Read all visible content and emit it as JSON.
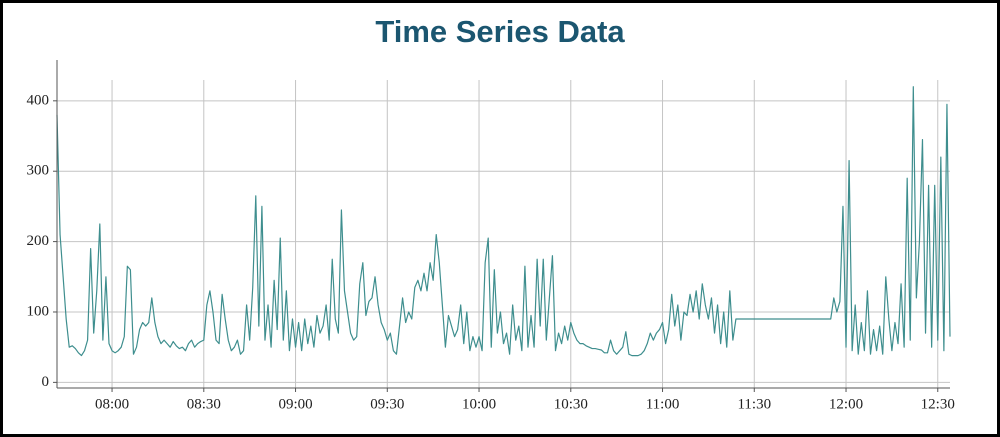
{
  "chart_data": {
    "type": "line",
    "title": "Time Series Data",
    "x": [
      "07:42",
      "07:43",
      "07:44",
      "07:45",
      "07:46",
      "07:47",
      "07:48",
      "07:49",
      "07:50",
      "07:51",
      "07:52",
      "07:53",
      "07:54",
      "07:55",
      "07:56",
      "07:57",
      "07:58",
      "07:59",
      "08:00",
      "08:01",
      "08:02",
      "08:03",
      "08:04",
      "08:05",
      "08:06",
      "08:07",
      "08:08",
      "08:09",
      "08:10",
      "08:11",
      "08:12",
      "08:13",
      "08:14",
      "08:15",
      "08:16",
      "08:17",
      "08:18",
      "08:19",
      "08:20",
      "08:21",
      "08:22",
      "08:23",
      "08:24",
      "08:25",
      "08:26",
      "08:27",
      "08:28",
      "08:29",
      "08:30",
      "08:31",
      "08:32",
      "08:33",
      "08:34",
      "08:35",
      "08:36",
      "08:37",
      "08:38",
      "08:39",
      "08:40",
      "08:41",
      "08:42",
      "08:43",
      "08:44",
      "08:45",
      "08:46",
      "08:47",
      "08:48",
      "08:49",
      "08:50",
      "08:51",
      "08:52",
      "08:53",
      "08:54",
      "08:55",
      "08:56",
      "08:57",
      "08:58",
      "08:59",
      "09:00",
      "09:01",
      "09:02",
      "09:03",
      "09:04",
      "09:05",
      "09:06",
      "09:07",
      "09:08",
      "09:09",
      "09:10",
      "09:11",
      "09:12",
      "09:13",
      "09:14",
      "09:15",
      "09:16",
      "09:17",
      "09:18",
      "09:19",
      "09:20",
      "09:21",
      "09:22",
      "09:23",
      "09:24",
      "09:25",
      "09:26",
      "09:27",
      "09:28",
      "09:29",
      "09:30",
      "09:31",
      "09:32",
      "09:33",
      "09:34",
      "09:35",
      "09:36",
      "09:37",
      "09:38",
      "09:39",
      "09:40",
      "09:41",
      "09:42",
      "09:43",
      "09:44",
      "09:45",
      "09:46",
      "09:47",
      "09:48",
      "09:49",
      "09:50",
      "09:51",
      "09:52",
      "09:53",
      "09:54",
      "09:55",
      "09:56",
      "09:57",
      "09:58",
      "09:59",
      "10:00",
      "10:01",
      "10:02",
      "10:03",
      "10:04",
      "10:05",
      "10:06",
      "10:07",
      "10:08",
      "10:09",
      "10:10",
      "10:11",
      "10:12",
      "10:13",
      "10:14",
      "10:15",
      "10:16",
      "10:17",
      "10:18",
      "10:19",
      "10:20",
      "10:21",
      "10:22",
      "10:23",
      "10:24",
      "10:25",
      "10:26",
      "10:27",
      "10:28",
      "10:29",
      "10:30",
      "10:31",
      "10:32",
      "10:33",
      "10:34",
      "10:35",
      "10:36",
      "10:37",
      "10:38",
      "10:39",
      "10:40",
      "10:41",
      "10:42",
      "10:43",
      "10:44",
      "10:45",
      "10:46",
      "10:47",
      "10:48",
      "10:49",
      "10:50",
      "10:51",
      "10:52",
      "10:53",
      "10:54",
      "10:55",
      "10:56",
      "10:57",
      "10:58",
      "10:59",
      "11:00",
      "11:01",
      "11:02",
      "11:03",
      "11:04",
      "11:05",
      "11:06",
      "11:07",
      "11:08",
      "11:09",
      "11:10",
      "11:11",
      "11:12",
      "11:13",
      "11:14",
      "11:15",
      "11:16",
      "11:17",
      "11:18",
      "11:19",
      "11:20",
      "11:21",
      "11:22",
      "11:23",
      "11:24",
      "11:55",
      "11:56",
      "11:57",
      "11:58",
      "11:59",
      "12:00",
      "12:01",
      "12:02",
      "12:03",
      "12:04",
      "12:05",
      "12:06",
      "12:07",
      "12:08",
      "12:09",
      "12:10",
      "12:11",
      "12:12",
      "12:13",
      "12:14",
      "12:15",
      "12:16",
      "12:17",
      "12:18",
      "12:19",
      "12:20",
      "12:21",
      "12:22",
      "12:23",
      "12:24",
      "12:25",
      "12:26",
      "12:27",
      "12:28",
      "12:29",
      "12:30",
      "12:31",
      "12:32",
      "12:33",
      "12:34"
    ],
    "values": [
      380,
      210,
      150,
      90,
      50,
      52,
      48,
      42,
      38,
      45,
      60,
      190,
      70,
      130,
      225,
      60,
      150,
      55,
      45,
      42,
      45,
      50,
      65,
      165,
      160,
      40,
      50,
      75,
      85,
      80,
      85,
      120,
      85,
      65,
      55,
      60,
      55,
      50,
      58,
      52,
      48,
      50,
      45,
      55,
      60,
      50,
      55,
      58,
      60,
      110,
      130,
      100,
      60,
      55,
      125,
      90,
      60,
      45,
      50,
      60,
      40,
      45,
      110,
      60,
      135,
      265,
      80,
      250,
      60,
      110,
      50,
      145,
      75,
      205,
      60,
      130,
      45,
      90,
      50,
      85,
      45,
      90,
      55,
      80,
      50,
      95,
      70,
      80,
      110,
      60,
      175,
      90,
      70,
      245,
      130,
      100,
      70,
      60,
      65,
      140,
      170,
      95,
      115,
      120,
      150,
      110,
      85,
      75,
      60,
      70,
      45,
      40,
      80,
      120,
      85,
      100,
      90,
      135,
      145,
      130,
      155,
      130,
      170,
      145,
      210,
      170,
      110,
      50,
      95,
      80,
      65,
      75,
      110,
      55,
      100,
      45,
      65,
      50,
      65,
      45,
      170,
      205,
      50,
      160,
      70,
      100,
      55,
      70,
      40,
      110,
      60,
      80,
      45,
      165,
      50,
      95,
      50,
      175,
      80,
      175,
      60,
      120,
      180,
      45,
      70,
      55,
      80,
      60,
      85,
      70,
      60,
      55,
      55,
      52,
      50,
      48,
      48,
      47,
      46,
      42,
      42,
      60,
      45,
      40,
      45,
      50,
      72,
      40,
      38,
      38,
      38,
      40,
      45,
      55,
      70,
      60,
      70,
      75,
      85,
      55,
      75,
      125,
      80,
      110,
      60,
      100,
      95,
      125,
      100,
      130,
      90,
      140,
      110,
      90,
      120,
      70,
      110,
      55,
      100,
      50,
      130,
      60,
      90,
      90,
      120,
      100,
      115,
      250,
      50,
      315,
      45,
      110,
      40,
      85,
      45,
      130,
      40,
      75,
      45,
      80,
      40,
      150,
      90,
      45,
      85,
      55,
      140,
      50,
      290,
      60,
      420,
      120,
      200,
      345,
      70,
      280,
      50,
      280,
      60,
      320,
      45,
      395,
      65
    ],
    "color": "#3e8e8e",
    "xlim": [
      "07:42",
      "12:34"
    ],
    "xticks": [
      "08:00",
      "08:30",
      "09:00",
      "09:30",
      "10:00",
      "10:30",
      "11:00",
      "11:30",
      "12:00",
      "12:30"
    ],
    "ylim": [
      -8,
      458
    ],
    "yticks": [
      0,
      100,
      200,
      300,
      400
    ],
    "grid": true
  }
}
